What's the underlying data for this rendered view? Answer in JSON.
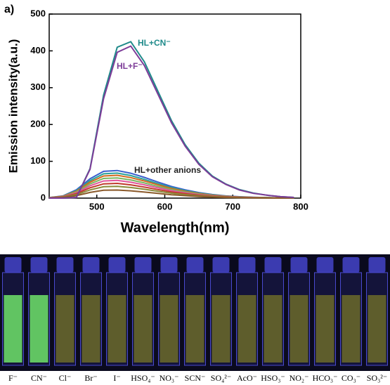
{
  "chart_data": {
    "type": "line",
    "panel_label": "a)",
    "xlabel": "Wavelength(nm)",
    "ylabel": "Emission intensity(a.u.)",
    "xlim": [
      430,
      800
    ],
    "xticks": [
      500,
      600,
      700,
      800
    ],
    "ylim": [
      0,
      500
    ],
    "yticks": [
      0,
      100,
      200,
      300,
      400,
      500
    ],
    "x": [
      430,
      450,
      470,
      490,
      510,
      530,
      550,
      570,
      590,
      610,
      630,
      650,
      670,
      690,
      710,
      730,
      750,
      770,
      790
    ],
    "series": [
      {
        "color": "#3a5fcd",
        "values": [
          1.5,
          6,
          22.5,
          52.5,
          72.8,
          75,
          67.5,
          56.3,
          43.5,
          31.5,
          22.5,
          15,
          9.8,
          6,
          3.8,
          2.3,
          1.5,
          0.8,
          0.4
        ]
      },
      {
        "color": "#2aa198",
        "values": [
          1.4,
          5.4,
          20.4,
          47.6,
          66,
          68,
          61.2,
          51,
          39.4,
          28.6,
          20.4,
          13.6,
          8.8,
          5.4,
          3.4,
          2,
          1.4,
          0.7,
          0.3
        ]
      },
      {
        "color": "#d2691e",
        "values": [
          1.2,
          5,
          18.6,
          43.4,
          60.1,
          62,
          55.8,
          46.5,
          36,
          26,
          18.6,
          12.4,
          8.1,
          5,
          3.1,
          1.9,
          1.2,
          0.6,
          0.3
        ]
      },
      {
        "color": "#7bb661",
        "values": [
          1.1,
          4.4,
          16.5,
          38.5,
          53.4,
          55,
          49.5,
          41.3,
          31.9,
          23.1,
          16.5,
          11,
          7.2,
          4.4,
          2.8,
          1.7,
          1.1,
          0.6,
          0.3
        ]
      },
      {
        "color": "#e0559a",
        "values": [
          1,
          3.8,
          14.4,
          33.6,
          46.6,
          48,
          43.2,
          36,
          27.8,
          20.2,
          14.4,
          9.6,
          6.2,
          3.8,
          2.4,
          1.4,
          1,
          0.5,
          0.2
        ]
      },
      {
        "color": "#c0392b",
        "values": [
          0.8,
          3.2,
          12,
          28,
          38.8,
          40,
          36,
          30,
          23.2,
          16.8,
          12,
          8,
          5.2,
          3.2,
          2,
          1.2,
          0.8,
          0.4,
          0.2
        ]
      },
      {
        "color": "#8b8b3a",
        "values": [
          0.6,
          2.6,
          9.6,
          22.4,
          31,
          32,
          28.8,
          24,
          18.6,
          13.4,
          9.6,
          6.4,
          4.2,
          2.6,
          1.6,
          1,
          0.6,
          0.3,
          0.2
        ]
      },
      {
        "color": "#8b5a2b",
        "values": [
          0.4,
          1.8,
          6.6,
          15.4,
          21.3,
          22,
          19.8,
          16.5,
          12.8,
          9.2,
          6.6,
          4.4,
          2.9,
          1.8,
          1.1,
          0.7,
          0.4,
          0.2,
          0.1
        ]
      },
      {
        "color": "#1f8a8a",
        "values": [
          0,
          0,
          2,
          80,
          280,
          410,
          425,
          370,
          290,
          210,
          145,
          95,
          60,
          38,
          23,
          14,
          8,
          4,
          2
        ]
      },
      {
        "color": "#7d3c98",
        "values": [
          0,
          0,
          2,
          78,
          270,
          396,
          413,
          360,
          282,
          204,
          141,
          92,
          58,
          37,
          22,
          13,
          8,
          4,
          2
        ]
      }
    ],
    "annotations": [
      {
        "text": "HL+CN⁻",
        "color": "#1f8a8a"
      },
      {
        "text": "HL+F⁻",
        "color": "#7d3c98"
      },
      {
        "text": "HL+other anions",
        "color": "#222222"
      }
    ]
  },
  "photo": {
    "labels": [
      "F⁻",
      "CN⁻",
      "Cl⁻",
      "Br⁻",
      "I⁻",
      "HSO₄⁻",
      "NO₃⁻",
      "SCN⁻",
      "SO₄²⁻",
      "AcO⁻",
      "HSO₃⁻",
      "NO₂⁻",
      "HCO₃⁻",
      "CO₃⁻",
      "SO₃²⁻"
    ],
    "colors": [
      "#6fe36a",
      "#6fe36a",
      "#6b6a2a",
      "#6b6a2a",
      "#6b6a2a",
      "#6b6a2a",
      "#6b6a2a",
      "#6b6a2a",
      "#6b6a2a",
      "#6b6a2a",
      "#6b6a2a",
      "#6b6a2a",
      "#6b6a2a",
      "#6b6a2a",
      "#6b6a2a"
    ]
  }
}
